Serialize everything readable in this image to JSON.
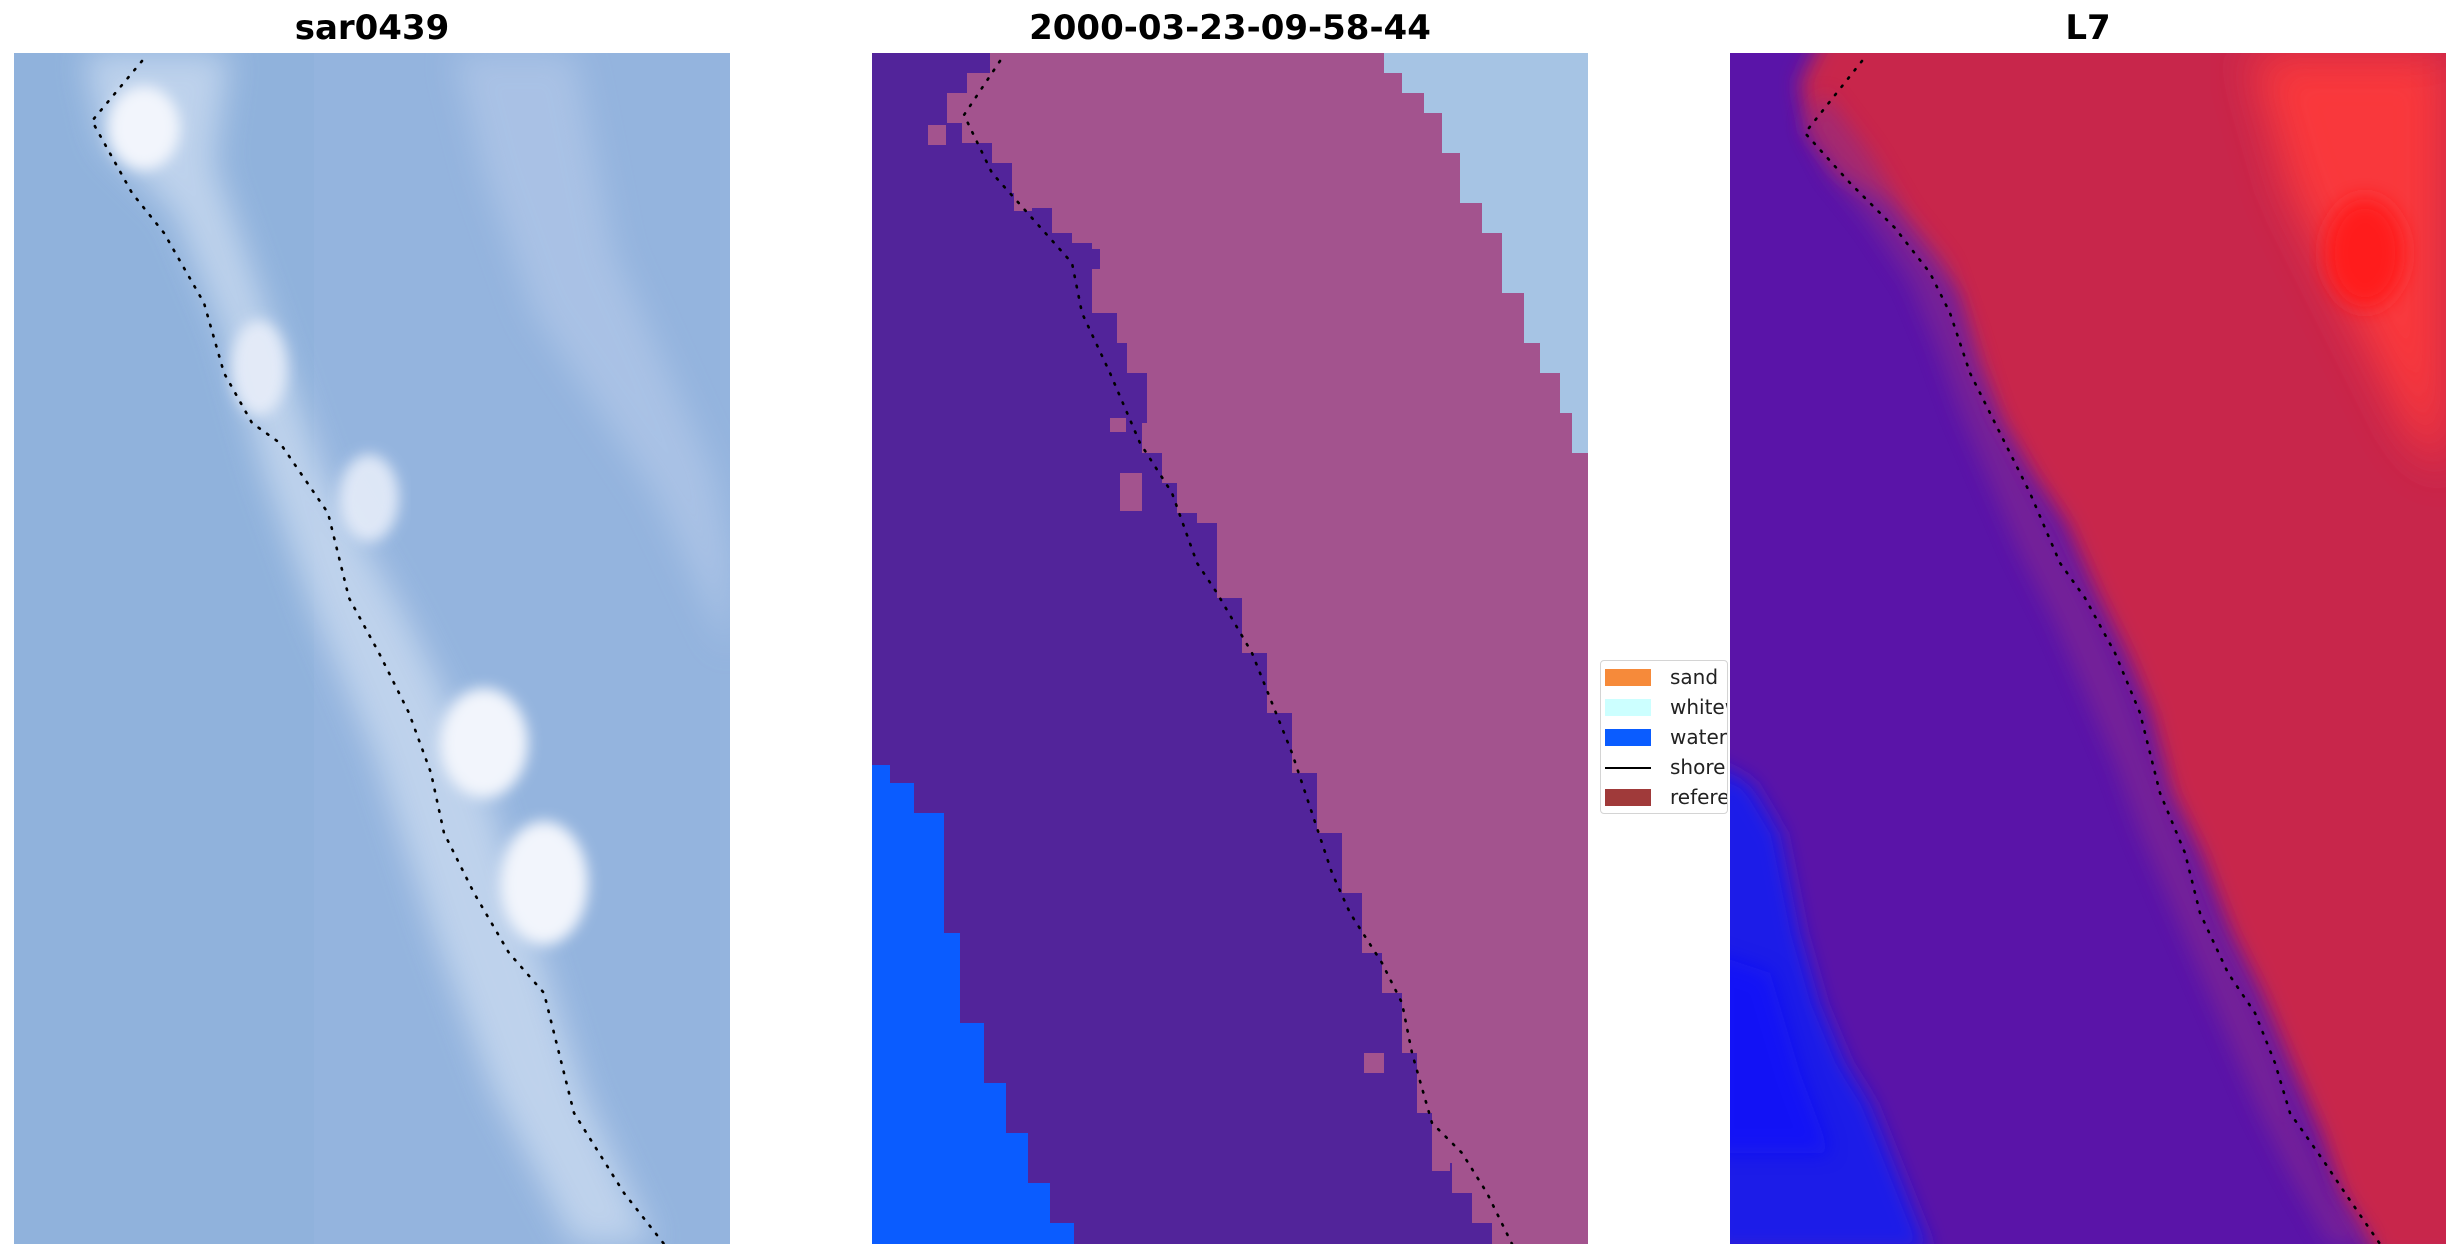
{
  "panels": {
    "left": {
      "title": "sar0439"
    },
    "middle": {
      "title": "2000-03-23-09-58-44"
    },
    "right": {
      "title": "L7"
    }
  },
  "legend": {
    "items": [
      {
        "label": "sand",
        "color": "#f68a3a",
        "icon": "filled-rect"
      },
      {
        "label": "whitewater",
        "color": "#ccffff",
        "icon": "filled-rect"
      },
      {
        "label": "water",
        "color": "#0a5cff",
        "icon": "filled-rect"
      },
      {
        "label": "shoreline",
        "color": "#000000",
        "icon": "line"
      },
      {
        "label": "reference",
        "color": "#a03a3a",
        "icon": "filled-rect"
      }
    ]
  },
  "colors": {
    "sar_background": "#94b4de",
    "sar_bright_band": "#c6d8ef",
    "sar_highlight": "#f2f5fc",
    "classification_other": "#52249a",
    "classification_land": "#a3538e",
    "classification_light_region": "#a6c4e4",
    "classification_water": "#0a5cff",
    "l7_water": "#1b1ee8",
    "l7_purple": "#5a14a8",
    "l7_red": "#c8284c",
    "l7_bright_red": "#ff2a2a",
    "shoreline_dots": "#000000"
  }
}
